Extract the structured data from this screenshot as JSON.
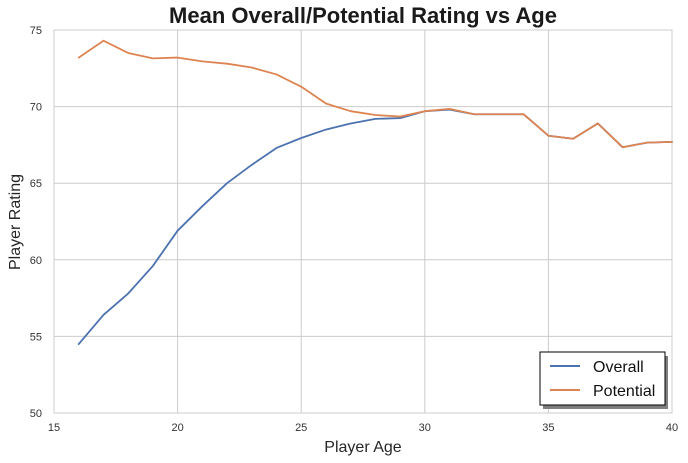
{
  "chart_data": {
    "type": "line",
    "title": "Mean Overall/Potential Rating vs Age",
    "xlabel": "Player Age",
    "ylabel": "Player Rating",
    "xlim": [
      15,
      40
    ],
    "ylim": [
      50,
      75
    ],
    "xticks": [
      15,
      20,
      25,
      30,
      35,
      40
    ],
    "yticks": [
      50,
      55,
      60,
      65,
      70,
      75
    ],
    "grid": true,
    "legend_position": "bottom-right",
    "x": [
      16,
      17,
      18,
      19,
      20,
      21,
      22,
      23,
      24,
      25,
      26,
      27,
      28,
      29,
      30,
      31,
      32,
      33,
      34,
      35,
      36,
      37,
      38,
      39,
      40
    ],
    "series": [
      {
        "name": "Overall",
        "color": "#4c72b0",
        "values": [
          54.5,
          56.4,
          57.8,
          59.6,
          61.9,
          63.5,
          65.0,
          66.2,
          67.3,
          67.95,
          68.5,
          68.9,
          69.2,
          69.25,
          69.7,
          69.8,
          69.5,
          69.5,
          69.5,
          68.1,
          67.9,
          68.9,
          67.35,
          67.65,
          67.7
        ]
      },
      {
        "name": "Potential",
        "color": "#dd8452",
        "values": [
          73.2,
          74.3,
          73.5,
          73.15,
          73.2,
          72.95,
          72.8,
          72.55,
          72.1,
          71.3,
          70.2,
          69.7,
          69.45,
          69.35,
          69.7,
          69.85,
          69.5,
          69.5,
          69.5,
          68.1,
          67.9,
          68.9,
          67.35,
          67.65,
          67.7
        ]
      }
    ]
  }
}
